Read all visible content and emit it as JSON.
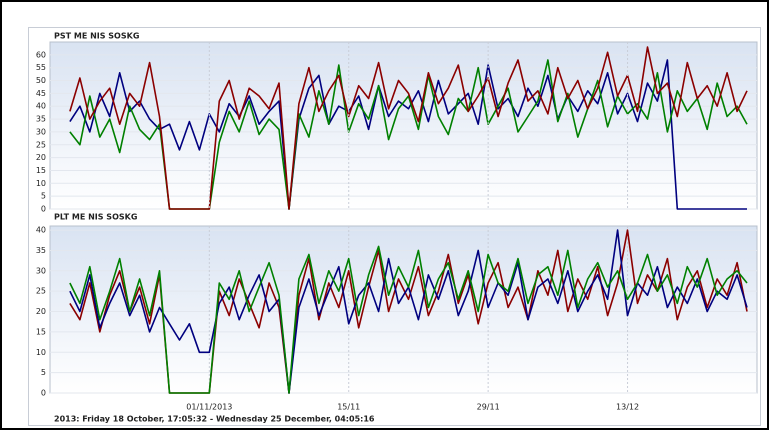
{
  "chart_data": [
    {
      "type": "line",
      "title": "PST ME NIS SOSKG",
      "x": [
        "2013-10-18",
        "2013-10-19",
        "2013-10-20",
        "2013-10-21",
        "2013-10-22",
        "2013-10-23",
        "2013-10-24",
        "2013-10-25",
        "2013-10-26",
        "2013-10-27",
        "2013-10-28",
        "2013-10-29",
        "2013-10-30",
        "2013-10-31",
        "2013-11-01",
        "2013-11-02",
        "2013-11-03",
        "2013-11-04",
        "2013-11-05",
        "2013-11-06",
        "2013-11-07",
        "2013-11-08",
        "2013-11-09",
        "2013-11-10",
        "2013-11-11",
        "2013-11-12",
        "2013-11-13",
        "2013-11-14",
        "2013-11-15",
        "2013-11-16",
        "2013-11-17",
        "2013-11-18",
        "2013-11-19",
        "2013-11-20",
        "2013-11-21",
        "2013-11-22",
        "2013-11-23",
        "2013-11-24",
        "2013-11-25",
        "2013-11-26",
        "2013-11-27",
        "2013-11-28",
        "2013-11-29",
        "2013-11-30",
        "2013-12-01",
        "2013-12-02",
        "2013-12-03",
        "2013-12-04",
        "2013-12-05",
        "2013-12-06",
        "2013-12-07",
        "2013-12-08",
        "2013-12-09",
        "2013-12-10",
        "2013-12-11",
        "2013-12-12",
        "2013-12-13",
        "2013-12-14",
        "2013-12-15",
        "2013-12-16",
        "2013-12-17",
        "2013-12-18",
        "2013-12-19",
        "2013-12-20",
        "2013-12-21",
        "2013-12-22",
        "2013-12-23",
        "2013-12-24",
        "2013-12-25"
      ],
      "xlim": [
        "2013-10-16",
        "2013-12-26"
      ],
      "ylim": [
        0,
        65
      ],
      "yticks": [
        0,
        5,
        10,
        15,
        20,
        25,
        30,
        35,
        40,
        45,
        50,
        55,
        60
      ],
      "grid": true,
      "series": [
        {
          "color": "#00007f",
          "values": [
            34,
            40,
            30,
            45,
            36,
            53,
            38,
            42,
            35,
            31,
            33,
            23,
            34,
            23,
            37,
            30,
            41,
            36,
            44,
            33,
            38,
            42,
            0,
            35,
            47,
            52,
            33,
            40,
            38,
            44,
            31,
            48,
            36,
            42,
            39,
            46,
            34,
            50,
            37,
            41,
            45,
            33,
            56,
            39,
            43,
            36,
            47,
            40,
            52,
            35,
            44,
            38,
            46,
            41,
            53,
            37,
            45,
            34,
            49,
            42,
            58,
            0,
            0,
            0,
            0,
            0,
            0,
            0,
            0
          ]
        },
        {
          "color": "#008000",
          "values": [
            30,
            25,
            44,
            28,
            35,
            22,
            40,
            31,
            27,
            33,
            0,
            0,
            0,
            0,
            0,
            26,
            38,
            30,
            42,
            29,
            35,
            31,
            0,
            37,
            28,
            46,
            33,
            56,
            30,
            41,
            35,
            48,
            27,
            39,
            44,
            31,
            52,
            36,
            29,
            43,
            38,
            55,
            33,
            40,
            47,
            30,
            36,
            42,
            58,
            34,
            45,
            28,
            39,
            50,
            32,
            44,
            37,
            41,
            35,
            53,
            30,
            46,
            38,
            43,
            31,
            49,
            36,
            40,
            33
          ]
        },
        {
          "color": "#8b0000",
          "values": [
            38,
            51,
            35,
            42,
            47,
            33,
            45,
            40,
            57,
            36,
            0,
            0,
            0,
            0,
            0,
            42,
            50,
            35,
            47,
            44,
            39,
            49,
            0,
            41,
            55,
            38,
            46,
            52,
            36,
            48,
            43,
            57,
            39,
            50,
            45,
            34,
            53,
            41,
            47,
            56,
            38,
            44,
            51,
            36,
            49,
            58,
            42,
            46,
            37,
            55,
            43,
            50,
            39,
            47,
            61,
            44,
            52,
            38,
            63,
            45,
            49,
            36,
            57,
            43,
            48,
            40,
            53,
            38,
            46
          ]
        }
      ]
    },
    {
      "type": "line",
      "title": "PLT ME NIS SOSKG",
      "x": [
        "2013-10-18",
        "2013-10-19",
        "2013-10-20",
        "2013-10-21",
        "2013-10-22",
        "2013-10-23",
        "2013-10-24",
        "2013-10-25",
        "2013-10-26",
        "2013-10-27",
        "2013-10-28",
        "2013-10-29",
        "2013-10-30",
        "2013-10-31",
        "2013-11-01",
        "2013-11-02",
        "2013-11-03",
        "2013-11-04",
        "2013-11-05",
        "2013-11-06",
        "2013-11-07",
        "2013-11-08",
        "2013-11-09",
        "2013-11-10",
        "2013-11-11",
        "2013-11-12",
        "2013-11-13",
        "2013-11-14",
        "2013-11-15",
        "2013-11-16",
        "2013-11-17",
        "2013-11-18",
        "2013-11-19",
        "2013-11-20",
        "2013-11-21",
        "2013-11-22",
        "2013-11-23",
        "2013-11-24",
        "2013-11-25",
        "2013-11-26",
        "2013-11-27",
        "2013-11-28",
        "2013-11-29",
        "2013-11-30",
        "2013-12-01",
        "2013-12-02",
        "2013-12-03",
        "2013-12-04",
        "2013-12-05",
        "2013-12-06",
        "2013-12-07",
        "2013-12-08",
        "2013-12-09",
        "2013-12-10",
        "2013-12-11",
        "2013-12-12",
        "2013-12-13",
        "2013-12-14",
        "2013-12-15",
        "2013-12-16",
        "2013-12-17",
        "2013-12-18",
        "2013-12-19",
        "2013-12-20",
        "2013-12-21",
        "2013-12-22",
        "2013-12-23",
        "2013-12-24",
        "2013-12-25"
      ],
      "xlim": [
        "2013-10-16",
        "2013-12-26"
      ],
      "ylim": [
        0,
        41
      ],
      "yticks": [
        0,
        5,
        10,
        15,
        20,
        25,
        30,
        35,
        40
      ],
      "grid": true,
      "xticks": [
        {
          "value": "2013-11-01",
          "label": "01/11/2013"
        },
        {
          "value": "2013-11-15",
          "label": "15/11"
        },
        {
          "value": "2013-11-29",
          "label": "29/11"
        },
        {
          "value": "2013-12-13",
          "label": "13/12"
        }
      ],
      "series": [
        {
          "color": "#8b0000",
          "values": [
            22,
            18,
            27,
            15,
            24,
            30,
            20,
            26,
            17,
            29,
            0,
            0,
            0,
            0,
            0,
            25,
            19,
            28,
            22,
            16,
            27,
            21,
            0,
            24,
            33,
            18,
            27,
            21,
            30,
            16,
            26,
            35,
            20,
            28,
            23,
            31,
            19,
            25,
            34,
            22,
            29,
            17,
            27,
            32,
            21,
            26,
            18,
            30,
            24,
            35,
            20,
            28,
            23,
            31,
            19,
            27,
            40,
            22,
            29,
            25,
            33,
            18,
            26,
            30,
            21,
            28,
            24,
            32,
            20
          ]
        },
        {
          "color": "#00007f",
          "values": [
            25,
            20,
            29,
            16,
            22,
            27,
            19,
            24,
            15,
            21,
            17,
            13,
            17,
            10,
            10,
            22,
            26,
            18,
            24,
            29,
            20,
            23,
            0,
            21,
            28,
            19,
            25,
            31,
            17,
            24,
            27,
            20,
            33,
            22,
            26,
            18,
            29,
            23,
            30,
            19,
            25,
            35,
            21,
            27,
            24,
            32,
            18,
            26,
            28,
            22,
            30,
            20,
            25,
            29,
            23,
            40,
            19,
            27,
            24,
            31,
            21,
            26,
            22,
            28,
            20,
            25,
            23,
            29,
            21
          ]
        },
        {
          "color": "#008000",
          "values": [
            27,
            22,
            31,
            18,
            25,
            33,
            20,
            28,
            19,
            30,
            0,
            0,
            0,
            0,
            0,
            27,
            23,
            30,
            20,
            26,
            32,
            24,
            0,
            28,
            34,
            22,
            30,
            25,
            33,
            19,
            29,
            36,
            24,
            31,
            26,
            35,
            21,
            28,
            32,
            23,
            30,
            20,
            34,
            27,
            25,
            33,
            22,
            29,
            31,
            24,
            35,
            21,
            28,
            32,
            26,
            30,
            23,
            27,
            34,
            25,
            29,
            22,
            31,
            26,
            33,
            24,
            28,
            30,
            27
          ]
        }
      ]
    }
  ],
  "footer": "2013: Friday 18 October, 17:05:32 - Wednesday 25 December, 04:05:16"
}
